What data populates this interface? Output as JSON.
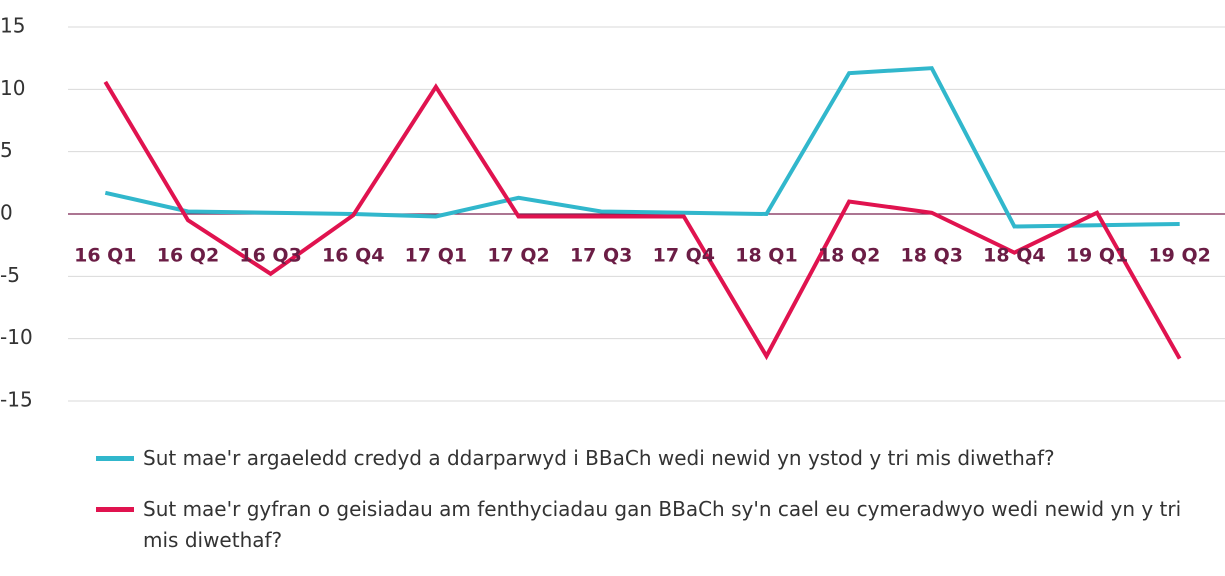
{
  "chart_data": {
    "type": "line",
    "categories": [
      "16 Q1",
      "16 Q2",
      "16 Q3",
      "16 Q4",
      "17 Q1",
      "17 Q2",
      "17 Q3",
      "17 Q4",
      "18 Q1",
      "18 Q2",
      "18 Q3",
      "18 Q4",
      "19 Q1",
      "19 Q2"
    ],
    "series": [
      {
        "name": "Sut mae'r argaeledd credyd a ddarparwyd i BBaCh wedi newid yn ystod y tri mis diwethaf?",
        "color": "#31b7cc",
        "values": [
          1.7,
          0.2,
          0.1,
          0,
          -0.2,
          1.3,
          0.2,
          0.1,
          0,
          11.3,
          11.7,
          -1,
          -0.9,
          -0.8
        ]
      },
      {
        "name": "Sut mae'r gyfran o geisiadau am fenthyciadau gan BBaCh sy'n cael eu cymeradwyo wedi newid yn y tri mis diwethaf?",
        "color": "#e0134f",
        "values": [
          10.6,
          -0.5,
          -4.8,
          -0.1,
          10.2,
          -0.2,
          -0.2,
          -0.2,
          -11.4,
          1.0,
          0.1,
          -3.1,
          0.1,
          -11.6
        ]
      }
    ],
    "ylim": [
      -15,
      15
    ],
    "yticks": [
      -15,
      -10,
      -5,
      0,
      5,
      10,
      15
    ],
    "grid": true
  }
}
